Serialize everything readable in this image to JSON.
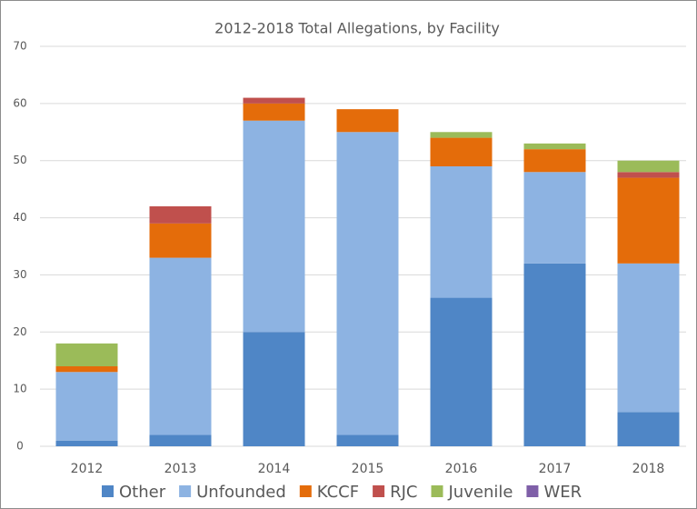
{
  "chart_data": {
    "type": "bar",
    "stacked": true,
    "title": "2012-2018 Total Allegations, by Facility",
    "categories": [
      "2012",
      "2013",
      "2014",
      "2015",
      "2016",
      "2017",
      "2018"
    ],
    "series": [
      {
        "name": "Other",
        "color": "#4f86c6",
        "values": [
          1,
          2,
          20,
          2,
          26,
          32,
          6
        ]
      },
      {
        "name": "Unfounded",
        "color": "#8db3e2",
        "values": [
          12,
          31,
          37,
          53,
          23,
          16,
          26
        ]
      },
      {
        "name": "KCCF",
        "color": "#e46c0a",
        "values": [
          1,
          6,
          3,
          4,
          5,
          4,
          15
        ]
      },
      {
        "name": "RJC",
        "color": "#c0504d",
        "values": [
          0,
          3,
          1,
          0,
          0,
          0,
          1
        ]
      },
      {
        "name": "Juvenile",
        "color": "#9bbb59",
        "values": [
          4,
          0,
          0,
          0,
          1,
          1,
          2
        ]
      },
      {
        "name": "WER",
        "color": "#7f5fa8",
        "values": [
          0,
          0,
          0,
          0,
          0,
          0,
          0
        ]
      }
    ],
    "ylim": [
      0,
      70
    ],
    "yticks": [
      0,
      10,
      20,
      30,
      40,
      50,
      60,
      70
    ],
    "grid": true,
    "legend": "bottom"
  }
}
